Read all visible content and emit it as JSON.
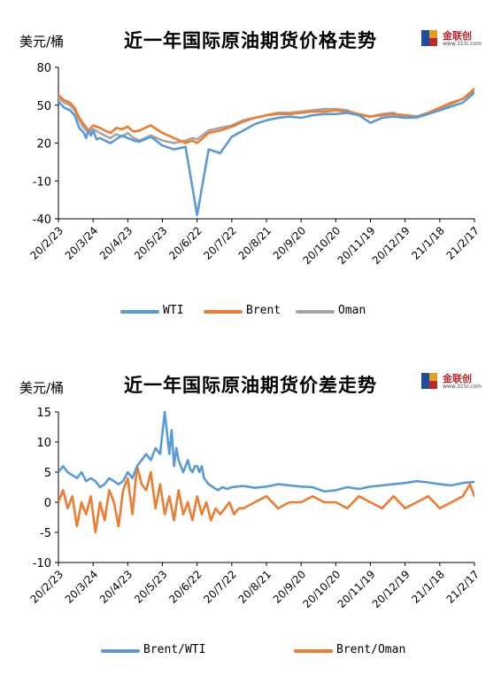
{
  "chart_data": [
    {
      "type": "line",
      "title": "近一年国际原油期货价格走势",
      "ylabel": "美元/桶",
      "xlabel": "",
      "ylim": [
        -40,
        80
      ],
      "yticks": [
        -40,
        -10,
        20,
        50,
        80
      ],
      "categories": [
        "20/2/23",
        "20/3/24",
        "20/4/23",
        "20/5/23",
        "20/6/22",
        "20/7/22",
        "20/8/21",
        "20/9/20",
        "20/10/20",
        "20/11/19",
        "20/12/19",
        "21/1/18",
        "21/2/17"
      ],
      "legend_position": "bottom",
      "grid": false,
      "series": [
        {
          "name": "WTI",
          "color": "#5b9bd5",
          "x": [
            0,
            5,
            10,
            14,
            18,
            22,
            24,
            26,
            28,
            29,
            30,
            33,
            36,
            40,
            45,
            50,
            55,
            60,
            65,
            70,
            80,
            90,
            100,
            110,
            120,
            130,
            140,
            150,
            160,
            170,
            180,
            190,
            200,
            210,
            220,
            230,
            240,
            250,
            260,
            270,
            280,
            290,
            300,
            310,
            320,
            330,
            340,
            350,
            360
          ],
          "y": [
            53,
            48,
            46,
            42,
            32,
            28,
            24,
            30,
            26,
            28,
            30,
            23,
            24,
            22,
            20,
            23,
            26,
            24,
            22,
            21,
            25,
            18,
            15,
            17,
            -37,
            15,
            12,
            25,
            30,
            35,
            38,
            40,
            41,
            40,
            42,
            43,
            43,
            44,
            42,
            36,
            40,
            41,
            40,
            41,
            43,
            46,
            49,
            52,
            60
          ]
        },
        {
          "name": "Brent",
          "color": "#ed7d31",
          "x": [
            0,
            5,
            10,
            14,
            18,
            22,
            26,
            30,
            36,
            40,
            45,
            50,
            55,
            60,
            65,
            70,
            80,
            90,
            100,
            110,
            116,
            120,
            130,
            140,
            150,
            160,
            170,
            180,
            190,
            200,
            210,
            220,
            230,
            240,
            250,
            260,
            270,
            280,
            290,
            300,
            310,
            320,
            330,
            340,
            350,
            360
          ],
          "y": [
            58,
            54,
            52,
            48,
            40,
            35,
            30,
            34,
            32,
            30,
            28,
            32,
            31,
            33,
            29,
            30,
            34,
            28,
            24,
            20,
            22,
            20,
            28,
            30,
            33,
            37,
            40,
            42,
            43,
            43,
            44,
            45,
            45,
            46,
            45,
            43,
            41,
            42,
            43,
            42,
            41,
            44,
            48,
            52,
            55,
            63
          ]
        },
        {
          "name": "Oman",
          "color": "#a5a5a5",
          "x": [
            0,
            5,
            10,
            14,
            18,
            22,
            26,
            30,
            36,
            40,
            45,
            50,
            55,
            60,
            65,
            70,
            80,
            90,
            100,
            110,
            116,
            120,
            130,
            140,
            150,
            160,
            170,
            180,
            190,
            200,
            210,
            220,
            230,
            240,
            250,
            260,
            270,
            280,
            290,
            300,
            310,
            320,
            330,
            340,
            350,
            360
          ],
          "y": [
            56,
            52,
            50,
            46,
            38,
            32,
            28,
            31,
            28,
            26,
            24,
            27,
            25,
            28,
            24,
            22,
            26,
            22,
            20,
            22,
            24,
            23,
            30,
            32,
            34,
            38,
            40,
            42,
            44,
            44,
            45,
            46,
            47,
            47,
            46,
            42,
            41,
            43,
            44,
            40,
            40,
            43,
            47,
            51,
            55,
            62
          ]
        }
      ],
      "logo": {
        "text": "金联创",
        "subtext": "www.315i.com"
      }
    },
    {
      "type": "line",
      "title": "近一年国际原油期货价差走势",
      "ylabel": "美元/桶",
      "xlabel": "",
      "ylim": [
        -10,
        15
      ],
      "yticks": [
        -10,
        -5,
        0,
        5,
        10,
        15
      ],
      "categories": [
        "20/2/23",
        "20/3/24",
        "20/4/23",
        "20/5/23",
        "20/6/22",
        "20/7/22",
        "20/8/21",
        "20/9/20",
        "20/10/20",
        "20/11/19",
        "20/12/19",
        "21/1/18",
        "21/2/17"
      ],
      "legend_position": "bottom",
      "grid": false,
      "series": [
        {
          "name": "Brent/WTI",
          "color": "#5b9bd5",
          "x": [
            0,
            4,
            8,
            12,
            16,
            20,
            24,
            28,
            32,
            36,
            40,
            44,
            48,
            52,
            56,
            60,
            64,
            68,
            72,
            76,
            80,
            84,
            88,
            92,
            96,
            98,
            100,
            102,
            104,
            106,
            108,
            110,
            112,
            114,
            116,
            118,
            120,
            122,
            124,
            126,
            130,
            134,
            138,
            142,
            146,
            150,
            160,
            170,
            180,
            190,
            200,
            210,
            220,
            230,
            240,
            250,
            260,
            270,
            280,
            290,
            300,
            310,
            320,
            330,
            340,
            350,
            360
          ],
          "y": [
            5,
            6,
            5,
            4.5,
            4,
            5,
            3.5,
            4,
            3.5,
            2.5,
            3,
            4,
            3.5,
            3,
            3.5,
            5,
            4,
            6,
            7,
            8,
            7,
            9,
            8,
            15,
            8,
            12,
            6,
            9,
            7,
            6,
            5,
            6,
            7,
            5.5,
            5,
            6,
            6,
            5,
            6,
            4,
            3,
            2.5,
            2,
            2.5,
            2.2,
            2.5,
            2.7,
            2.4,
            2.6,
            3,
            2.8,
            2.6,
            2.5,
            1.8,
            2,
            2.5,
            2.2,
            2.6,
            2.8,
            3,
            3.2,
            3.5,
            3.3,
            3,
            2.8,
            3.2,
            3.4
          ]
        },
        {
          "name": "Brent/Oman",
          "color": "#ed7d31",
          "x": [
            0,
            4,
            8,
            12,
            16,
            20,
            24,
            28,
            32,
            36,
            40,
            44,
            48,
            52,
            56,
            60,
            64,
            68,
            72,
            76,
            80,
            84,
            88,
            92,
            96,
            100,
            104,
            108,
            112,
            116,
            120,
            124,
            128,
            132,
            136,
            140,
            144,
            148,
            152,
            156,
            160,
            170,
            180,
            190,
            200,
            210,
            220,
            230,
            240,
            250,
            260,
            270,
            280,
            290,
            300,
            310,
            320,
            330,
            340,
            350,
            356,
            360
          ],
          "y": [
            0,
            2,
            -1,
            1,
            -4,
            0,
            -2,
            1,
            -5,
            0,
            -3,
            2,
            0,
            -4,
            2,
            4,
            -2,
            6,
            3,
            2,
            5,
            -1,
            3,
            -2,
            1,
            -3,
            2,
            -2,
            0,
            -3,
            1,
            -2,
            0,
            -3,
            -1,
            -2,
            -1,
            0,
            -2,
            -1,
            -1,
            0,
            1,
            -1,
            0,
            0,
            1,
            0,
            0,
            -1,
            1,
            0,
            -1,
            1,
            -1,
            0,
            1,
            -1,
            0,
            1,
            3,
            1
          ]
        }
      ]
    }
  ]
}
